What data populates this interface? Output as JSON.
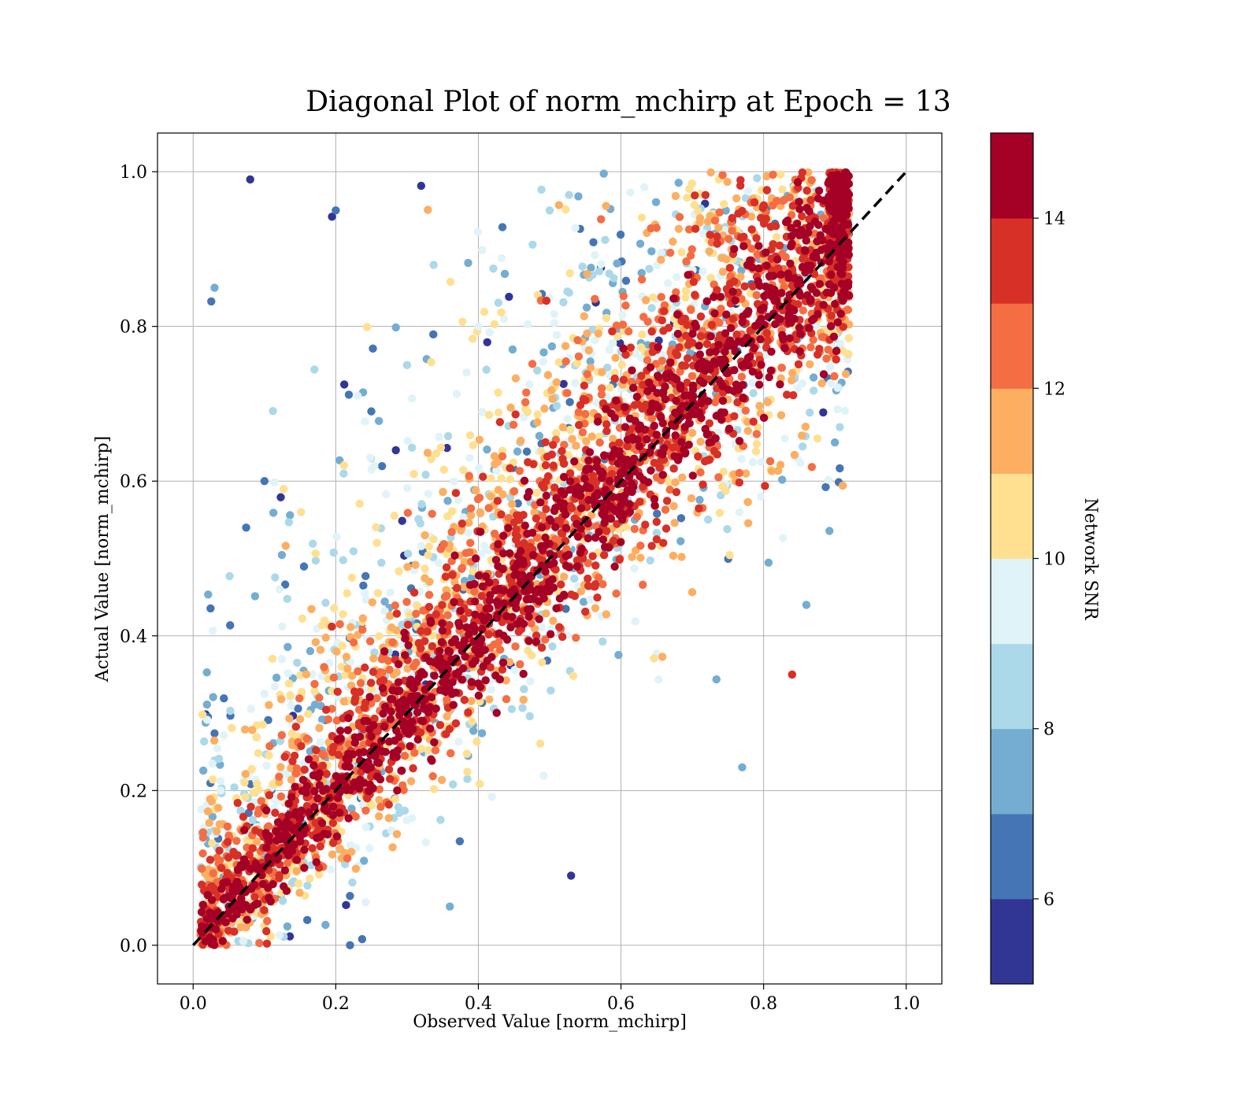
{
  "chart_data": {
    "type": "scatter",
    "title": "Diagonal Plot of norm_mchirp at Epoch = 13",
    "xlabel": "Observed Value [norm_mchirp]",
    "ylabel": "Actual Value [norm_mchirp]",
    "xlim": [
      -0.05,
      1.05
    ],
    "ylim": [
      -0.05,
      1.05
    ],
    "x_ticks": [
      "0.0",
      "0.2",
      "0.4",
      "0.6",
      "0.8",
      "1.0"
    ],
    "y_ticks": [
      "0.0",
      "0.2",
      "0.4",
      "0.6",
      "0.8",
      "1.0"
    ],
    "x_tick_values": [
      0.0,
      0.2,
      0.4,
      0.6,
      0.8,
      1.0
    ],
    "y_tick_values": [
      0.0,
      0.2,
      0.4,
      0.6,
      0.8,
      1.0
    ],
    "grid": true,
    "reference_line": {
      "x": [
        0,
        1
      ],
      "y": [
        0,
        1
      ],
      "style": "dashed",
      "color": "#000000"
    },
    "colorbar": {
      "label": "Network SNR",
      "range": [
        5,
        15
      ],
      "tick_values": [
        6,
        8,
        10,
        12,
        14
      ],
      "ticks": [
        "6",
        "8",
        "10",
        "12",
        "14"
      ],
      "colors": [
        "#313695",
        "#4575b4",
        "#74add1",
        "#abd9e9",
        "#e0f3f8",
        "#fee090",
        "#fdae61",
        "#f46d43",
        "#d73027",
        "#a50026"
      ]
    },
    "series": [
      {
        "color_by": "snr",
        "points_sample": [
          {
            "x": 0.05,
            "y": 0.05,
            "snr": 14.8
          },
          {
            "x": 0.15,
            "y": 0.14,
            "snr": 14.6
          },
          {
            "x": 0.25,
            "y": 0.27,
            "snr": 14.9
          },
          {
            "x": 0.35,
            "y": 0.34,
            "snr": 14.7
          },
          {
            "x": 0.45,
            "y": 0.46,
            "snr": 14.9
          },
          {
            "x": 0.55,
            "y": 0.55,
            "snr": 14.8
          },
          {
            "x": 0.65,
            "y": 0.66,
            "snr": 14.9
          },
          {
            "x": 0.75,
            "y": 0.74,
            "snr": 14.8
          },
          {
            "x": 0.85,
            "y": 0.86,
            "snr": 14.9
          },
          {
            "x": 0.92,
            "y": 0.84,
            "snr": 14.5
          },
          {
            "x": 0.08,
            "y": 0.99,
            "snr": 5.3
          },
          {
            "x": 0.1,
            "y": 0.6,
            "snr": 6.0
          },
          {
            "x": 0.03,
            "y": 0.85,
            "snr": 7.5
          },
          {
            "x": 0.2,
            "y": 0.95,
            "snr": 6.5
          },
          {
            "x": 0.3,
            "y": 0.75,
            "snr": 8.0
          },
          {
            "x": 0.4,
            "y": 0.8,
            "snr": 9.0
          },
          {
            "x": 0.5,
            "y": 0.95,
            "snr": 8.5
          },
          {
            "x": 0.84,
            "y": 0.35,
            "snr": 13.5
          },
          {
            "x": 0.77,
            "y": 0.23,
            "snr": 7.0
          },
          {
            "x": 0.36,
            "y": 0.05,
            "snr": 7.5
          },
          {
            "x": 0.22,
            "y": 0.0,
            "snr": 6.5
          },
          {
            "x": 0.53,
            "y": 0.09,
            "snr": 5.5
          },
          {
            "x": 0.9,
            "y": 0.65,
            "snr": 7.5
          },
          {
            "x": 0.86,
            "y": 0.44,
            "snr": 7.0
          }
        ]
      }
    ]
  }
}
